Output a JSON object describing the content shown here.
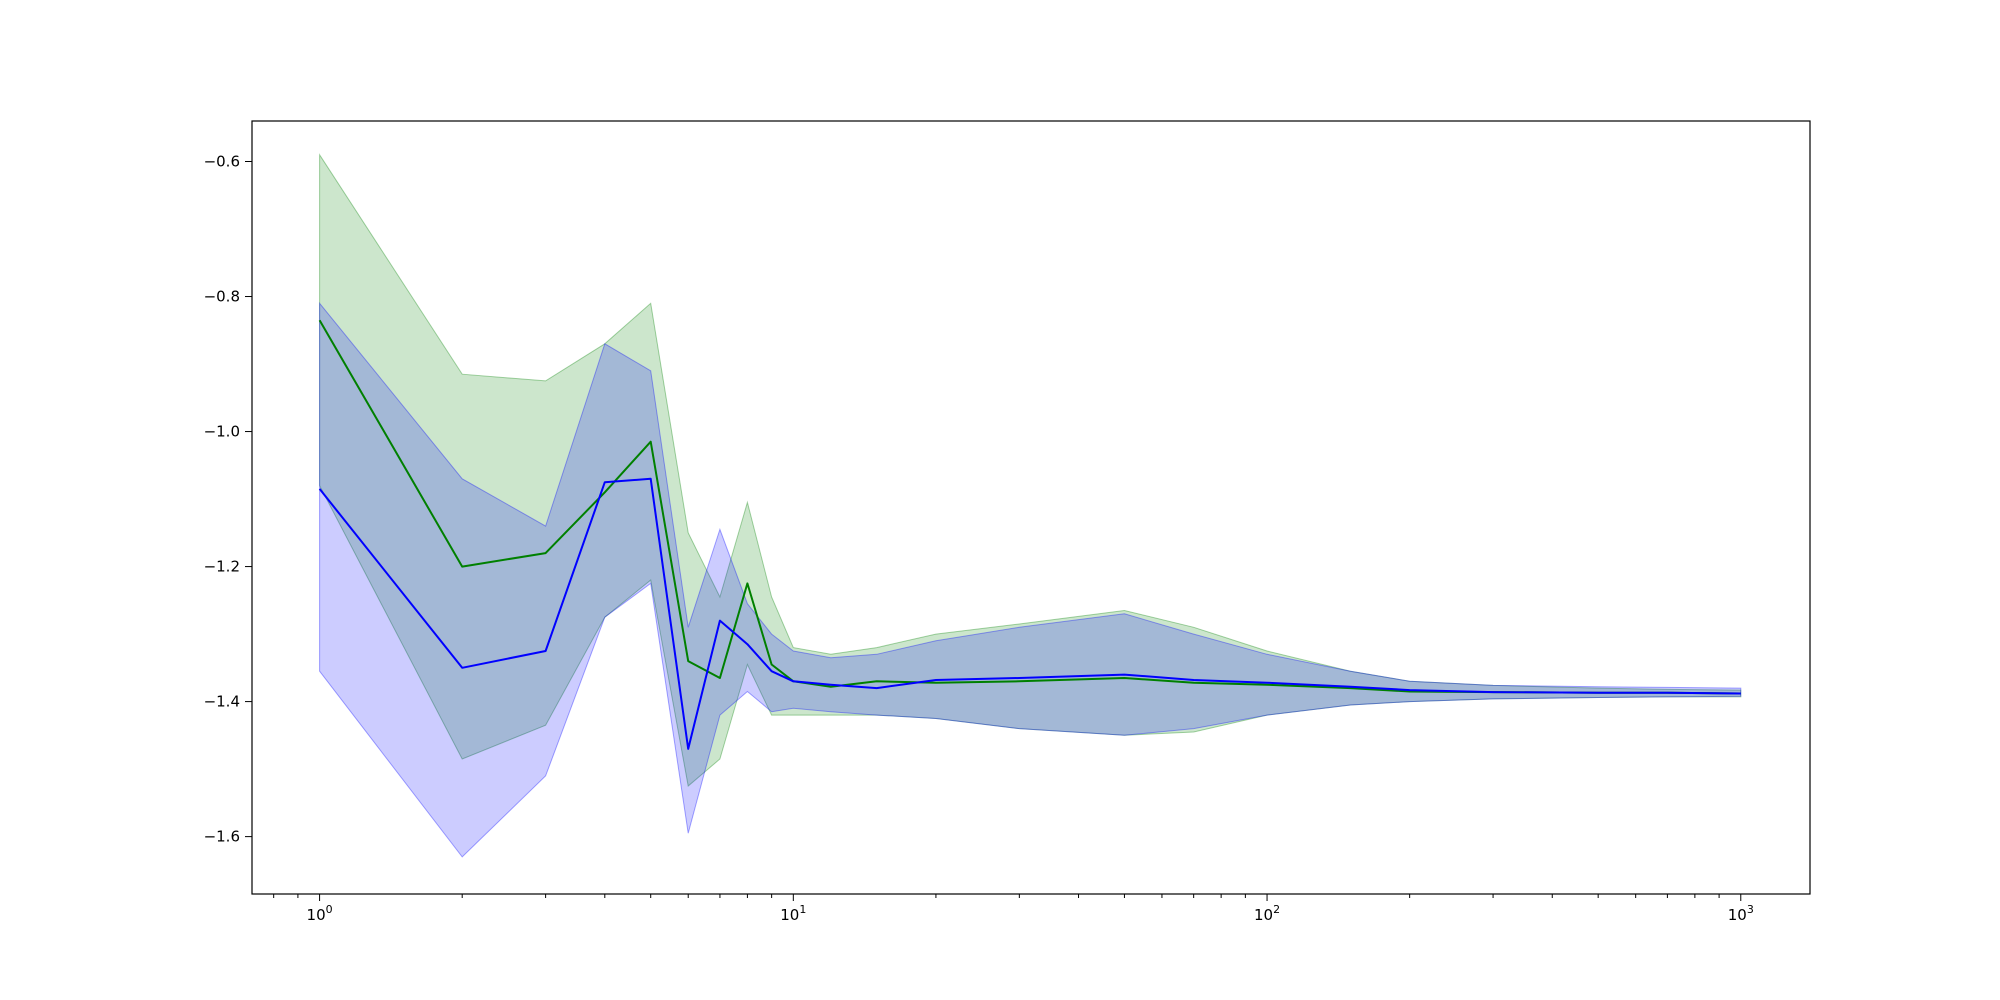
{
  "chart_data": {
    "type": "line",
    "title": "",
    "xlabel": "",
    "ylabel": "",
    "xscale": "log",
    "xlim": [
      0.72,
      1400
    ],
    "ylim": [
      -1.685,
      -0.54
    ],
    "grid": false,
    "x_ticks": [
      {
        "value": 1,
        "base": "10",
        "exp": "0"
      },
      {
        "value": 10,
        "base": "10",
        "exp": "1"
      },
      {
        "value": 100,
        "base": "10",
        "exp": "2"
      },
      {
        "value": 1000,
        "base": "10",
        "exp": "3"
      }
    ],
    "y_ticks": [
      {
        "value": -0.6,
        "label": "−0.6"
      },
      {
        "value": -0.8,
        "label": "−0.8"
      },
      {
        "value": -1.0,
        "label": "−1.0"
      },
      {
        "value": -1.2,
        "label": "−1.2"
      },
      {
        "value": -1.4,
        "label": "−1.4"
      },
      {
        "value": -1.6,
        "label": "−1.6"
      }
    ],
    "series": [
      {
        "color": "#008000",
        "band_color": "#008000",
        "band_opacity": 0.2,
        "x": [
          1,
          2,
          3,
          4,
          5,
          6,
          7,
          8,
          9,
          10,
          12,
          15,
          20,
          30,
          50,
          70,
          100,
          150,
          200,
          300,
          500,
          700,
          1000
        ],
        "mean": [
          -0.835,
          -1.2,
          -1.18,
          -1.09,
          -1.015,
          -1.34,
          -1.365,
          -1.225,
          -1.345,
          -1.37,
          -1.378,
          -1.37,
          -1.372,
          -1.37,
          -1.365,
          -1.372,
          -1.375,
          -1.38,
          -1.385,
          -1.386,
          -1.387,
          -1.387,
          -1.388
        ],
        "upper": [
          -0.59,
          -0.915,
          -0.925,
          -0.87,
          -0.81,
          -1.15,
          -1.245,
          -1.105,
          -1.245,
          -1.32,
          -1.33,
          -1.32,
          -1.3,
          -1.285,
          -1.265,
          -1.29,
          -1.325,
          -1.355,
          -1.37,
          -1.376,
          -1.38,
          -1.382,
          -1.383
        ],
        "lower": [
          -1.08,
          -1.485,
          -1.435,
          -1.275,
          -1.22,
          -1.525,
          -1.485,
          -1.345,
          -1.42,
          -1.42,
          -1.42,
          -1.42,
          -1.425,
          -1.44,
          -1.45,
          -1.445,
          -1.42,
          -1.405,
          -1.4,
          -1.396,
          -1.394,
          -1.393,
          -1.393
        ]
      },
      {
        "color": "#0000ff",
        "band_color": "#0000ff",
        "band_opacity": 0.2,
        "x": [
          1,
          2,
          3,
          4,
          5,
          6,
          7,
          8,
          9,
          10,
          12,
          15,
          20,
          30,
          50,
          70,
          100,
          150,
          200,
          300,
          500,
          700,
          1000
        ],
        "mean": [
          -1.085,
          -1.35,
          -1.325,
          -1.075,
          -1.07,
          -1.47,
          -1.28,
          -1.315,
          -1.355,
          -1.37,
          -1.375,
          -1.38,
          -1.368,
          -1.365,
          -1.36,
          -1.368,
          -1.372,
          -1.378,
          -1.383,
          -1.386,
          -1.387,
          -1.387,
          -1.388
        ],
        "upper": [
          -0.81,
          -1.07,
          -1.14,
          -0.87,
          -0.91,
          -1.29,
          -1.145,
          -1.255,
          -1.3,
          -1.325,
          -1.335,
          -1.33,
          -1.31,
          -1.29,
          -1.27,
          -1.3,
          -1.33,
          -1.355,
          -1.37,
          -1.376,
          -1.378,
          -1.379,
          -1.38
        ],
        "lower": [
          -1.355,
          -1.63,
          -1.51,
          -1.275,
          -1.225,
          -1.595,
          -1.42,
          -1.385,
          -1.415,
          -1.41,
          -1.415,
          -1.42,
          -1.425,
          -1.44,
          -1.45,
          -1.44,
          -1.42,
          -1.405,
          -1.4,
          -1.396,
          -1.394,
          -1.393,
          -1.392
        ]
      }
    ]
  }
}
